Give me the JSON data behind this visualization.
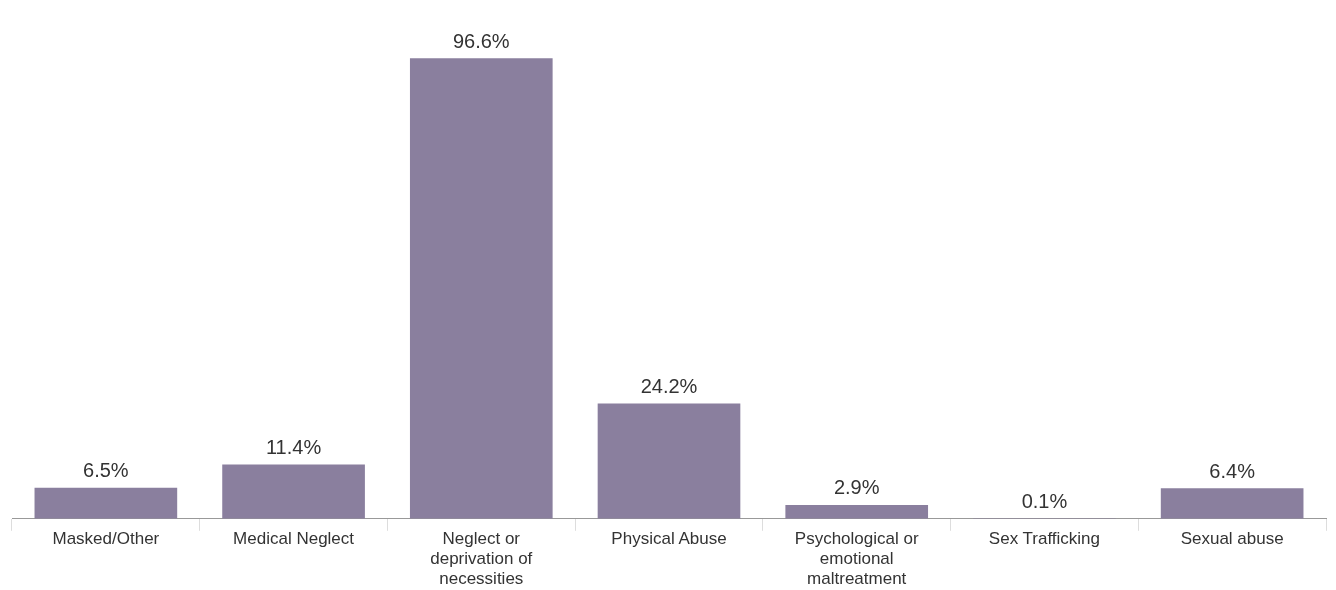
{
  "chart_data": {
    "type": "bar",
    "categories": [
      "Masked/Other",
      "Medical Neglect",
      "Neglect or deprivation of necessities",
      "Physical Abuse",
      "Psychological or emotional maltreatment",
      "Sex Trafficking",
      "Sexual abuse"
    ],
    "values": [
      6.5,
      11.4,
      96.6,
      24.2,
      2.9,
      0.1,
      6.4
    ],
    "value_labels": [
      "6.5%",
      "11.4%",
      "96.6%",
      "24.2%",
      "2.9%",
      "0.1%",
      "6.4%"
    ],
    "color": "#8a7f9e",
    "grid": false,
    "legend": false
  }
}
